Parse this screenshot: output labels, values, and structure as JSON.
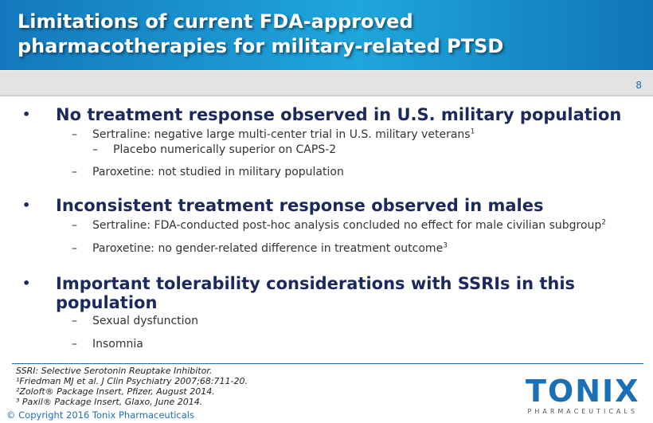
{
  "title_line1": "Limitations of current FDA-approved",
  "title_line2": "pharmacotherapies for military-related PTSD",
  "page_number": "8",
  "bullets": [
    {
      "text": "No treatment response observed in U.S. military population",
      "subs": [
        {
          "text": "Sertraline: negative large multi-center trial in U.S. military veterans",
          "sup": "1",
          "subs": [
            {
              "text": "Placebo numerically superior on CAPS-2"
            }
          ]
        },
        {
          "text": "Paroxetine: not studied in military population",
          "sup": ""
        }
      ]
    },
    {
      "text": "Inconsistent treatment response observed in males",
      "subs": [
        {
          "text": "Sertraline: FDA-conducted post-hoc analysis concluded no effect for male civilian subgroup",
          "sup": "2"
        },
        {
          "text": "Paroxetine: no gender-related difference in treatment outcome",
          "sup": "3"
        }
      ]
    },
    {
      "text": "Important tolerability considerations with SSRIs in this population",
      "subs": [
        {
          "text": "Sexual dysfunction"
        },
        {
          "text": "Insomnia"
        }
      ]
    }
  ],
  "footnotes": [
    "SSRI: Selective Serotonin Reuptake Inhibitor.",
    "¹Friedman MJ et al. J Clin Psychiatry 2007;68:711-20.",
    "²Zoloft® Package Insert, Pfizer, August 2014.",
    "³ Paxil® Package Insert, Glaxo, June 2014."
  ],
  "copyright": "© Copyright 2016 Tonix Pharmaceuticals",
  "logo": {
    "word": "TONIX",
    "sub": "PHARMACEUTICALS"
  },
  "bullet_char": "•",
  "dash_char": "–"
}
